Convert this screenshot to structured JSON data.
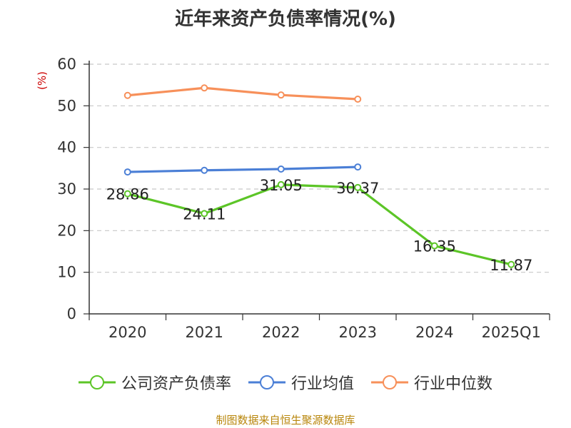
{
  "chart_data": {
    "type": "line",
    "title": "近年来资产负债率情况(%)",
    "ylabel": "(%)",
    "xlabel": "",
    "categories": [
      "2020",
      "2021",
      "2022",
      "2023",
      "2024",
      "2025Q1"
    ],
    "ylim": [
      0,
      60
    ],
    "yticks": [
      0,
      10,
      20,
      30,
      40,
      50,
      60
    ],
    "grid": true,
    "legend_position": "bottom",
    "series": [
      {
        "name": "公司资产负债率",
        "color": "#5cc527",
        "values": [
          28.86,
          24.11,
          31.05,
          30.37,
          16.35,
          11.87
        ],
        "show_labels": true
      },
      {
        "name": "行业均值",
        "color": "#4b7fd6",
        "values": [
          34.1,
          34.5,
          34.8,
          35.3,
          null,
          null
        ],
        "show_labels": false
      },
      {
        "name": "行业中位数",
        "color": "#f7905a",
        "values": [
          52.5,
          54.3,
          52.6,
          51.6,
          null,
          null
        ],
        "show_labels": false
      }
    ]
  },
  "source": "制图数据来自恒生聚源数据库"
}
